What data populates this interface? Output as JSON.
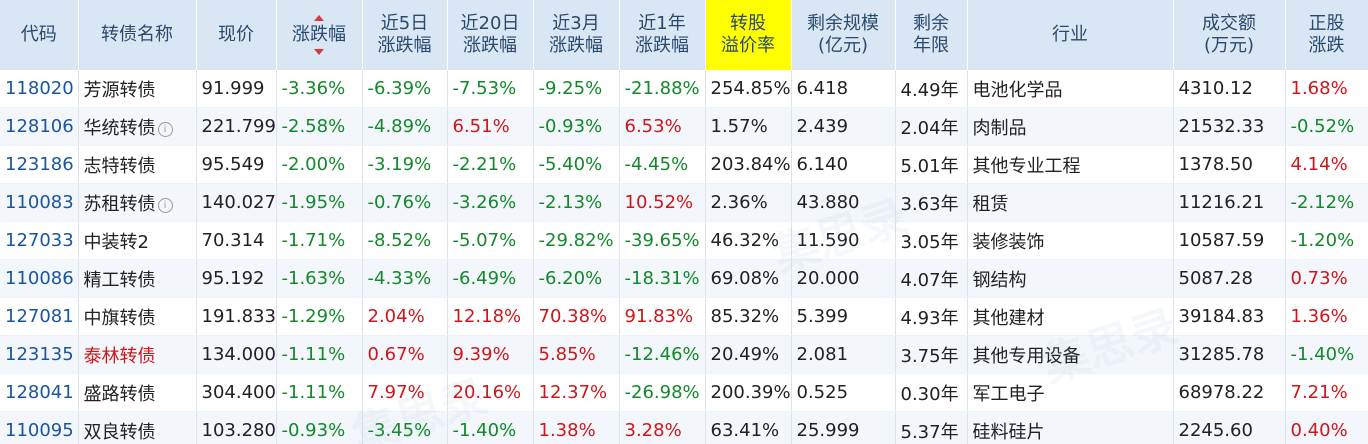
{
  "headers": {
    "code": "代码",
    "name": "转债名称",
    "price": "现价",
    "chg": "涨跌幅",
    "chg5d": [
      "近5日",
      "涨跌幅"
    ],
    "chg20d": [
      "近20日",
      "涨跌幅"
    ],
    "chg3m": [
      "近3月",
      "涨跌幅"
    ],
    "chg1y": [
      "近1年",
      "涨跌幅"
    ],
    "premium": [
      "转股",
      "溢价率"
    ],
    "scale": [
      "剩余规模",
      "(亿元)"
    ],
    "term": [
      "剩余",
      "年限"
    ],
    "industry": "行业",
    "volume": [
      "成交额",
      "(万元)"
    ],
    "stock_chg": [
      "正股",
      "涨跌"
    ]
  },
  "watermark": "集思录",
  "rows": [
    {
      "code": "118020",
      "name": "芳源转债",
      "info": false,
      "hot": false,
      "price": "91.999",
      "chg": "-3.36%",
      "chg5d": "-6.39%",
      "chg20d": "-7.53%",
      "chg3m": "-9.25%",
      "chg1y": "-21.88%",
      "premium": "254.85%",
      "scale": "6.418",
      "term": "4.49年",
      "industry": "电池化学品",
      "volume": "4310.12",
      "stock_chg": "1.68%"
    },
    {
      "code": "128106",
      "name": "华统转债",
      "info": true,
      "hot": false,
      "price": "221.799",
      "chg": "-2.58%",
      "chg5d": "-4.89%",
      "chg20d": "6.51%",
      "chg3m": "-0.93%",
      "chg1y": "6.53%",
      "premium": "1.57%",
      "scale": "2.439",
      "term": "2.04年",
      "industry": "肉制品",
      "volume": "21532.33",
      "stock_chg": "-0.52%"
    },
    {
      "code": "123186",
      "name": "志特转债",
      "info": false,
      "hot": false,
      "price": "95.549",
      "chg": "-2.00%",
      "chg5d": "-3.19%",
      "chg20d": "-2.21%",
      "chg3m": "-5.40%",
      "chg1y": "-4.45%",
      "premium": "203.84%",
      "scale": "6.140",
      "term": "5.01年",
      "industry": "其他专业工程",
      "volume": "1378.50",
      "stock_chg": "4.14%"
    },
    {
      "code": "110083",
      "name": "苏租转债",
      "info": true,
      "hot": false,
      "price": "140.027",
      "chg": "-1.95%",
      "chg5d": "-0.76%",
      "chg20d": "-3.26%",
      "chg3m": "-2.13%",
      "chg1y": "10.52%",
      "premium": "2.36%",
      "scale": "43.880",
      "term": "3.63年",
      "industry": "租赁",
      "volume": "11216.21",
      "stock_chg": "-2.12%"
    },
    {
      "code": "127033",
      "name": "中装转2",
      "info": false,
      "hot": false,
      "price": "70.314",
      "chg": "-1.71%",
      "chg5d": "-8.52%",
      "chg20d": "-5.07%",
      "chg3m": "-29.82%",
      "chg1y": "-39.65%",
      "premium": "46.32%",
      "scale": "11.590",
      "term": "3.05年",
      "industry": "装修装饰",
      "volume": "10587.59",
      "stock_chg": "-1.20%"
    },
    {
      "code": "110086",
      "name": "精工转债",
      "info": false,
      "hot": false,
      "price": "95.192",
      "chg": "-1.63%",
      "chg5d": "-4.33%",
      "chg20d": "-6.49%",
      "chg3m": "-6.20%",
      "chg1y": "-18.31%",
      "premium": "69.08%",
      "scale": "20.000",
      "term": "4.07年",
      "industry": "钢结构",
      "volume": "5087.28",
      "stock_chg": "0.73%"
    },
    {
      "code": "127081",
      "name": "中旗转债",
      "info": false,
      "hot": false,
      "price": "191.833",
      "chg": "-1.29%",
      "chg5d": "2.04%",
      "chg20d": "12.18%",
      "chg3m": "70.38%",
      "chg1y": "91.83%",
      "premium": "85.32%",
      "scale": "5.399",
      "term": "4.93年",
      "industry": "其他建材",
      "volume": "39184.83",
      "stock_chg": "1.36%"
    },
    {
      "code": "123135",
      "name": "泰林转债",
      "info": false,
      "hot": true,
      "price": "134.000",
      "chg": "-1.11%",
      "chg5d": "0.67%",
      "chg20d": "9.39%",
      "chg3m": "5.85%",
      "chg1y": "-12.46%",
      "premium": "20.49%",
      "scale": "2.081",
      "term": "3.75年",
      "industry": "其他专用设备",
      "volume": "31285.78",
      "stock_chg": "-1.40%"
    },
    {
      "code": "128041",
      "name": "盛路转债",
      "info": false,
      "hot": false,
      "price": "304.400",
      "chg": "-1.11%",
      "chg5d": "7.97%",
      "chg20d": "20.16%",
      "chg3m": "12.37%",
      "chg1y": "-26.98%",
      "premium": "200.39%",
      "scale": "0.525",
      "term": "0.30年",
      "industry": "军工电子",
      "volume": "68978.22",
      "stock_chg": "7.21%"
    },
    {
      "code": "110095",
      "name": "双良转债",
      "info": false,
      "hot": false,
      "price": "103.280",
      "chg": "-0.93%",
      "chg5d": "-3.45%",
      "chg20d": "-1.40%",
      "chg3m": "1.38%",
      "chg1y": "3.28%",
      "premium": "63.41%",
      "scale": "25.999",
      "term": "5.37年",
      "industry": "硅料硅片",
      "volume": "2245.60",
      "stock_chg": "0.40%"
    }
  ]
}
